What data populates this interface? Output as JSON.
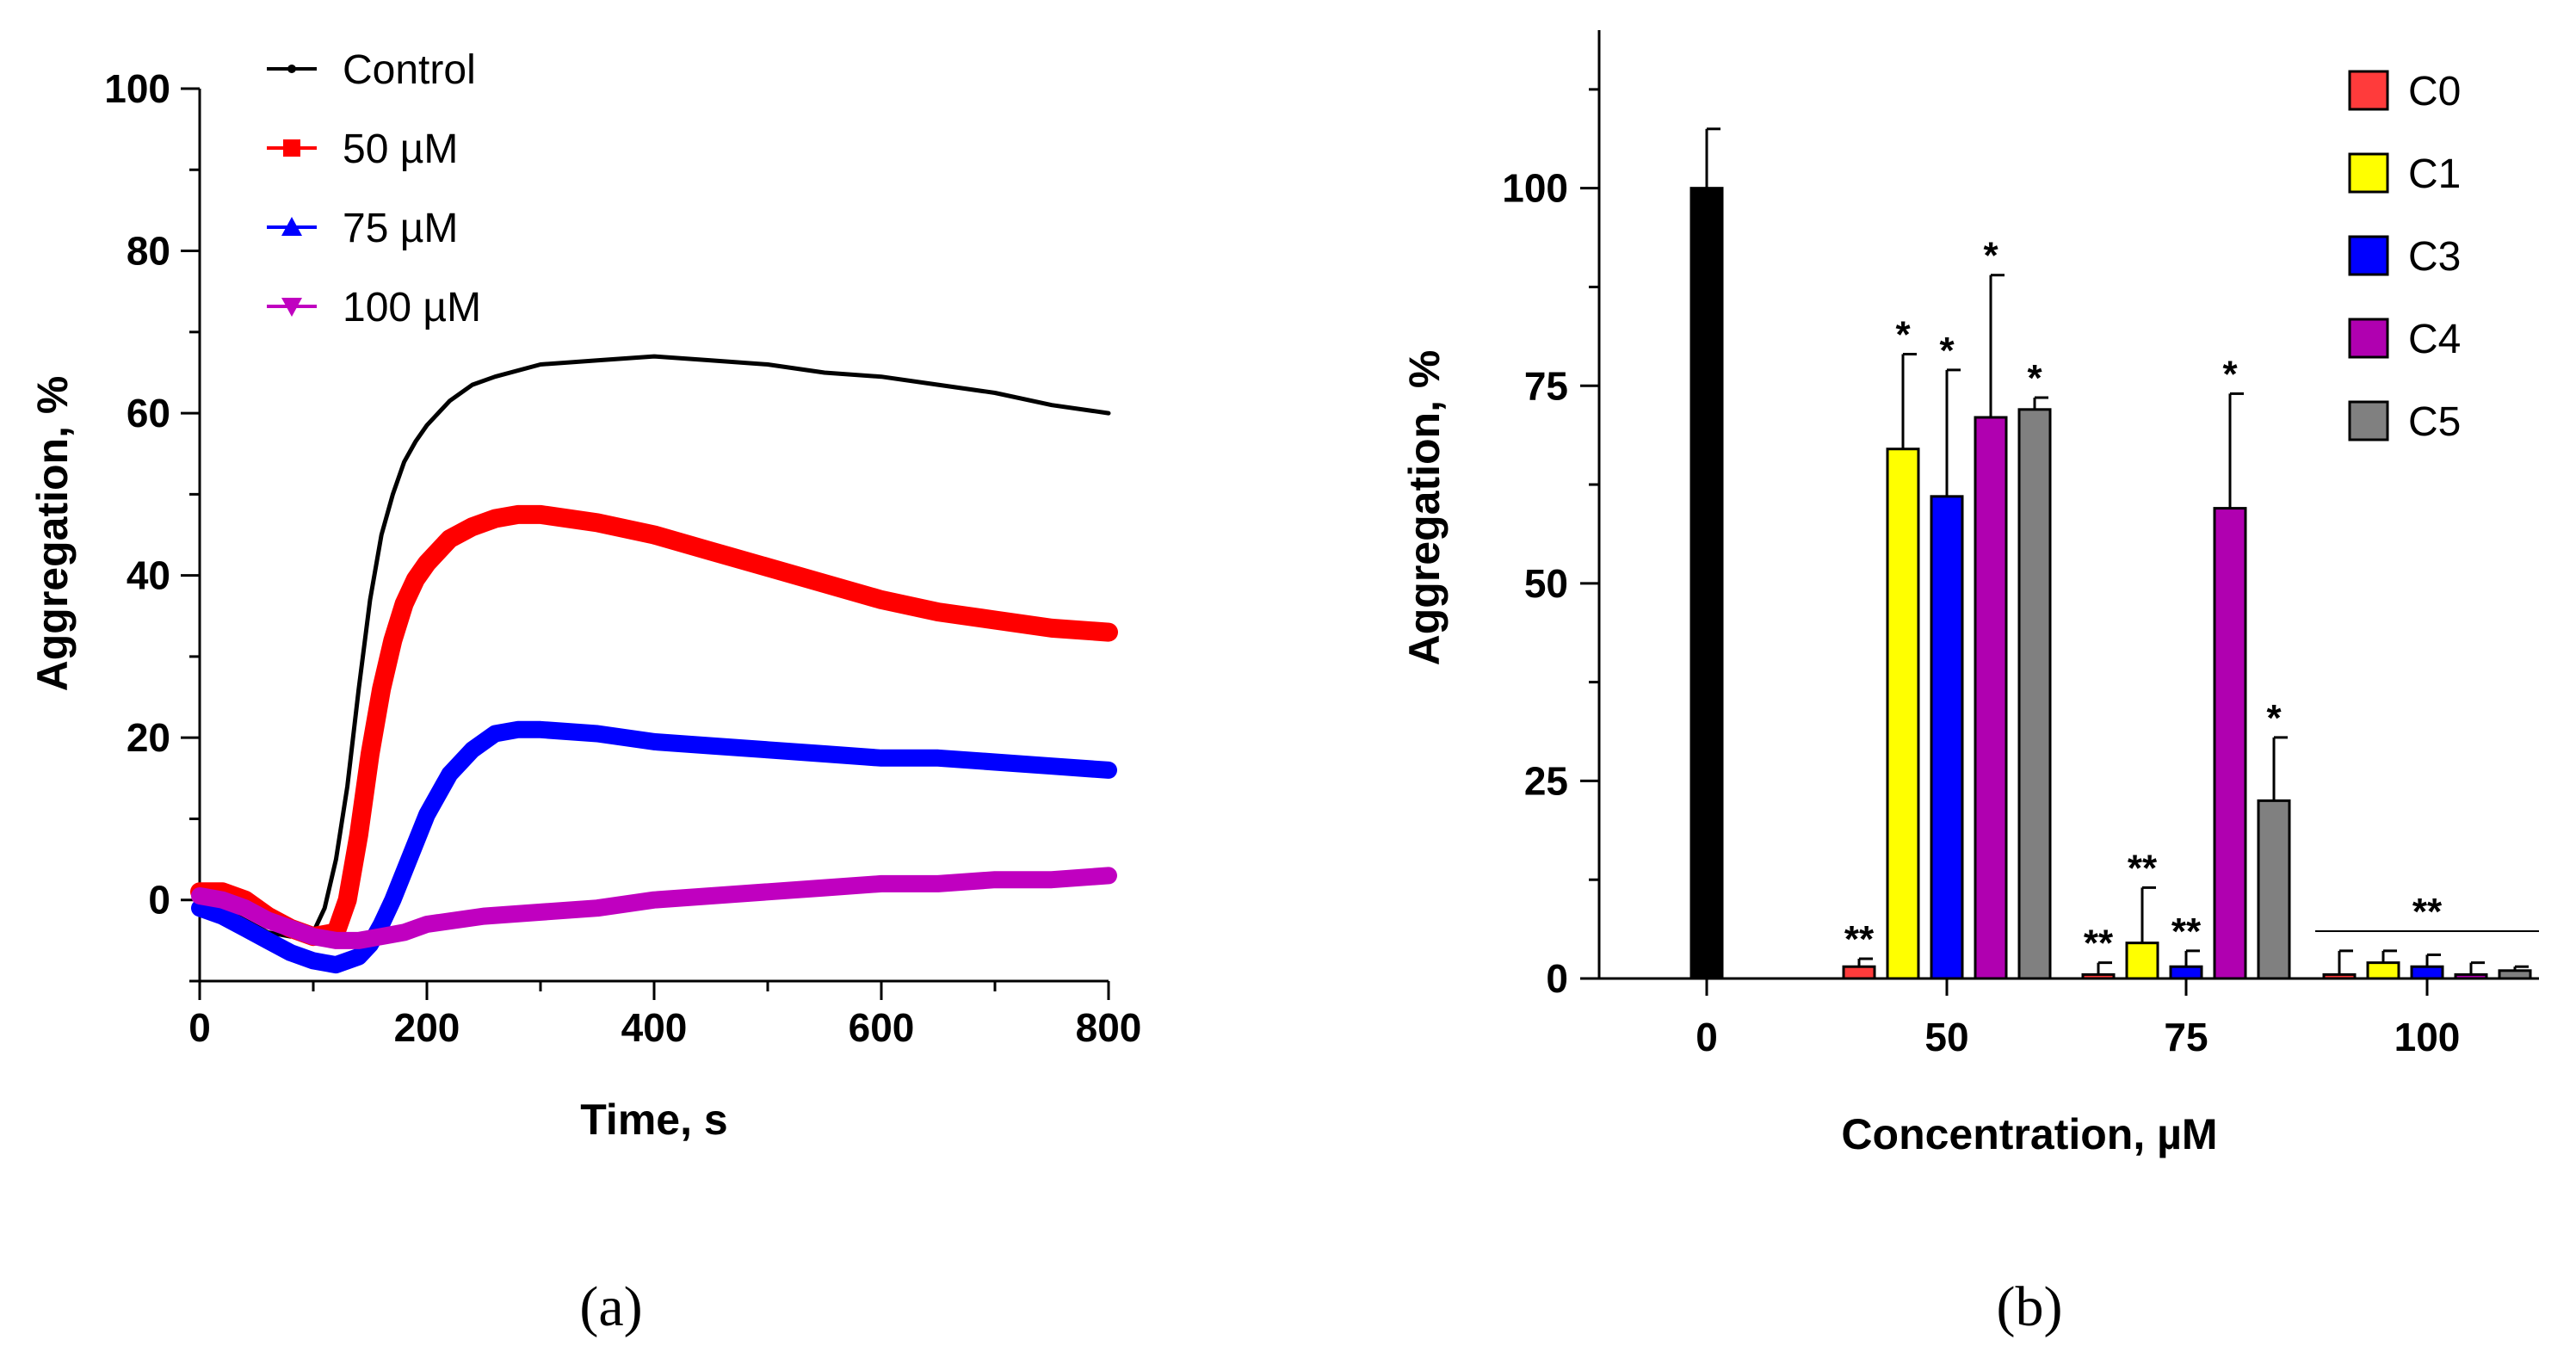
{
  "chart_data": [
    {
      "type": "line",
      "panel_label": "(a)",
      "xlabel": "Time, s",
      "ylabel": "Aggregation, %",
      "xlim": [
        0,
        800
      ],
      "ylim": [
        -10,
        100
      ],
      "xticks": [
        "0",
        "200",
        "400",
        "600",
        "800"
      ],
      "yticks": [
        "0",
        "20",
        "40",
        "60",
        "80",
        "100"
      ],
      "legend_position": "top-left",
      "series": [
        {
          "name": "Control",
          "color": "#000000",
          "x": [
            0,
            20,
            40,
            60,
            80,
            100,
            110,
            120,
            130,
            140,
            150,
            160,
            170,
            180,
            190,
            200,
            220,
            240,
            260,
            300,
            350,
            400,
            450,
            500,
            550,
            600,
            650,
            700,
            750,
            800
          ],
          "y": [
            0,
            -1,
            -2.5,
            -4,
            -4.5,
            -4,
            -1,
            5,
            14,
            26,
            37,
            45,
            50,
            54,
            56.5,
            58.5,
            61.5,
            63.5,
            64.5,
            66,
            66.5,
            67,
            66.5,
            66,
            65,
            64.5,
            63.5,
            62.5,
            61,
            60
          ]
        },
        {
          "name": "50 µM",
          "color": "#ff0000",
          "x": [
            0,
            20,
            40,
            60,
            80,
            100,
            120,
            130,
            140,
            150,
            160,
            170,
            180,
            190,
            200,
            220,
            240,
            260,
            280,
            300,
            350,
            400,
            450,
            500,
            550,
            600,
            650,
            700,
            750,
            800
          ],
          "y": [
            1,
            1,
            0,
            -2,
            -3.5,
            -4.5,
            -4,
            0,
            8,
            18,
            26,
            32,
            36.5,
            39.5,
            41.5,
            44.5,
            46,
            47,
            47.5,
            47.5,
            46.5,
            45,
            43,
            41,
            39,
            37,
            35.5,
            34.5,
            33.5,
            33
          ]
        },
        {
          "name": "75 µM",
          "color": "#0000ff",
          "x": [
            0,
            20,
            40,
            60,
            80,
            100,
            120,
            140,
            150,
            160,
            170,
            180,
            190,
            200,
            220,
            240,
            260,
            280,
            300,
            350,
            400,
            450,
            500,
            550,
            600,
            650,
            700,
            750,
            800
          ],
          "y": [
            -1,
            -2,
            -3.5,
            -5,
            -6.5,
            -7.5,
            -8,
            -7,
            -5.5,
            -3,
            0,
            3.5,
            7,
            10.5,
            15.5,
            18.5,
            20.5,
            21,
            21,
            20.5,
            19.5,
            19,
            18.5,
            18,
            17.5,
            17.5,
            17,
            16.5,
            16
          ]
        },
        {
          "name": "100 µM",
          "color": "#c000c0",
          "x": [
            0,
            20,
            40,
            60,
            80,
            100,
            120,
            140,
            160,
            180,
            200,
            250,
            300,
            350,
            400,
            450,
            500,
            550,
            600,
            650,
            700,
            750,
            800
          ],
          "y": [
            0.5,
            0,
            -1,
            -2.5,
            -3.5,
            -4.5,
            -5,
            -5,
            -4.5,
            -4,
            -3,
            -2,
            -1.5,
            -1,
            0,
            0.5,
            1,
            1.5,
            2,
            2,
            2.5,
            2.5,
            3
          ]
        }
      ]
    },
    {
      "type": "bar",
      "panel_label": "(b)",
      "xlabel": "Concentration, µM",
      "ylabel": "Aggregation, %",
      "ylim": [
        0,
        120
      ],
      "yticks": [
        "0",
        "25",
        "50",
        "75",
        "100"
      ],
      "categories": [
        "0",
        "50",
        "75",
        "100"
      ],
      "legend_position": "top-right",
      "control": {
        "category": "0",
        "value": 100,
        "error": 7.5,
        "color": "#000000"
      },
      "series": [
        {
          "name": "C0",
          "color": "#ff3b3b",
          "values": [
            null,
            1.5,
            0.5,
            0.5
          ],
          "errors": [
            null,
            1.0,
            1.5,
            3.0
          ],
          "significance": [
            null,
            "**",
            "**",
            ""
          ]
        },
        {
          "name": "C1",
          "color": "#ffff00",
          "values": [
            null,
            67,
            4.5,
            2
          ],
          "errors": [
            null,
            12,
            7,
            1.5
          ],
          "significance": [
            null,
            "*",
            "**",
            ""
          ]
        },
        {
          "name": "C3",
          "color": "#0000ff",
          "values": [
            null,
            61,
            1.5,
            1.5
          ],
          "errors": [
            null,
            16,
            2,
            1.5
          ],
          "significance": [
            null,
            "*",
            "**",
            ""
          ]
        },
        {
          "name": "C4",
          "color": "#b000b0",
          "values": [
            null,
            71,
            59.5,
            0.5
          ],
          "errors": [
            null,
            18,
            14.5,
            1.5
          ],
          "significance": [
            null,
            "*",
            "*",
            ""
          ]
        },
        {
          "name": "C5",
          "color": "#808080",
          "values": [
            null,
            72,
            22.5,
            1
          ],
          "errors": [
            null,
            1.5,
            8,
            0.5
          ],
          "significance": [
            null,
            "*",
            "*",
            ""
          ]
        }
      ],
      "group_annotation": {
        "category": "100",
        "text": "**"
      }
    }
  ]
}
